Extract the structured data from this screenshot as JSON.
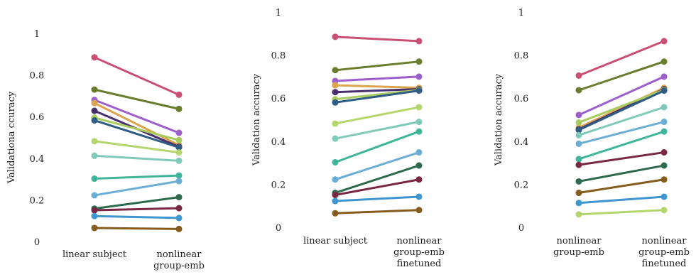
{
  "chart_data": [
    {
      "type": "line",
      "ylabel": "Validationa ccuracy",
      "ylim": [
        0,
        1
      ],
      "yticks": [
        "0",
        "0.2",
        "0.4",
        "0.6",
        "0.8",
        "1"
      ],
      "grid": false,
      "categories": [
        [
          "linear subject"
        ],
        [
          "nonlinear",
          "group-emb"
        ]
      ],
      "series": [
        {
          "values": [
            0.885,
            0.705
          ],
          "color": "#c94f73"
        },
        {
          "values": [
            0.73,
            0.637
          ],
          "color": "#6a7d2d"
        },
        {
          "values": [
            0.68,
            0.522
          ],
          "color": "#9c5fcc"
        },
        {
          "values": [
            0.665,
            0.463
          ],
          "color": "#dca44d"
        },
        {
          "values": [
            0.628,
            0.455
          ],
          "color": "#4a2f6e"
        },
        {
          "values": [
            0.595,
            0.487
          ],
          "color": "#a9cc5e"
        },
        {
          "values": [
            0.582,
            0.452
          ],
          "color": "#2f5d86"
        },
        {
          "values": [
            0.482,
            0.428
          ],
          "color": "#b5d66d"
        },
        {
          "values": [
            0.412,
            0.388
          ],
          "color": "#7fcab8"
        },
        {
          "values": [
            0.302,
            0.317
          ],
          "color": "#3fb59a"
        },
        {
          "values": [
            0.222,
            0.29
          ],
          "color": "#6aaed6"
        },
        {
          "values": [
            0.158,
            0.213
          ],
          "color": "#2e6b4e"
        },
        {
          "values": [
            0.15,
            0.16
          ],
          "color": "#7a2744"
        },
        {
          "values": [
            0.122,
            0.113
          ],
          "color": "#3f95cf"
        },
        {
          "values": [
            0.065,
            0.06
          ],
          "color": "#865c1e"
        }
      ]
    },
    {
      "type": "line",
      "ylabel": "Validation accuracy",
      "ylim": [
        0,
        1
      ],
      "yticks": [
        "0",
        "0.2",
        "0.4",
        "0.6",
        "0.8",
        "1"
      ],
      "grid": false,
      "categories": [
        [
          "linear subject"
        ],
        [
          "nonlinear",
          "group-emb",
          "finetuned"
        ]
      ],
      "series": [
        {
          "values": [
            0.885,
            0.865
          ],
          "color": "#c94f73"
        },
        {
          "values": [
            0.73,
            0.77
          ],
          "color": "#6a7d2d"
        },
        {
          "values": [
            0.68,
            0.7
          ],
          "color": "#9c5fcc"
        },
        {
          "values": [
            0.66,
            0.648
          ],
          "color": "#dca44d"
        },
        {
          "values": [
            0.628,
            0.642
          ],
          "color": "#4a2f6e"
        },
        {
          "values": [
            0.595,
            0.638
          ],
          "color": "#a9cc5e"
        },
        {
          "values": [
            0.58,
            0.635
          ],
          "color": "#2f5d86"
        },
        {
          "values": [
            0.482,
            0.558
          ],
          "color": "#b5d66d"
        },
        {
          "values": [
            0.412,
            0.49
          ],
          "color": "#7fcab8"
        },
        {
          "values": [
            0.302,
            0.445
          ],
          "color": "#3fb59a"
        },
        {
          "values": [
            0.222,
            0.348
          ],
          "color": "#6aaed6"
        },
        {
          "values": [
            0.16,
            0.287
          ],
          "color": "#2e6b4e"
        },
        {
          "values": [
            0.15,
            0.222
          ],
          "color": "#7a2744"
        },
        {
          "values": [
            0.122,
            0.142
          ],
          "color": "#3f95cf"
        },
        {
          "values": [
            0.065,
            0.08
          ],
          "color": "#865c1e"
        }
      ]
    },
    {
      "type": "line",
      "ylabel": "Validation accuracy",
      "ylim": [
        0,
        1
      ],
      "yticks": [
        "0",
        "0.2",
        "0.4",
        "0.6",
        "0.8",
        "1"
      ],
      "grid": false,
      "categories": [
        [
          "nonlinear",
          "group-emb"
        ],
        [
          "nonlinear",
          "group-emb",
          "finetuned"
        ]
      ],
      "series": [
        {
          "values": [
            0.705,
            0.865
          ],
          "color": "#c94f73"
        },
        {
          "values": [
            0.637,
            0.77
          ],
          "color": "#6a7d2d"
        },
        {
          "values": [
            0.522,
            0.7
          ],
          "color": "#9c5fcc"
        },
        {
          "values": [
            0.463,
            0.648
          ],
          "color": "#dca44d"
        },
        {
          "values": [
            0.455,
            0.642
          ],
          "color": "#4a2f6e"
        },
        {
          "values": [
            0.487,
            0.638
          ],
          "color": "#a9cc5e"
        },
        {
          "values": [
            0.452,
            0.635
          ],
          "color": "#2f5d86"
        },
        {
          "values": [
            0.428,
            0.558
          ],
          "color": "#7fcab8"
        },
        {
          "values": [
            0.388,
            0.49
          ],
          "color": "#6aaed6"
        },
        {
          "values": [
            0.317,
            0.445
          ],
          "color": "#3fb59a"
        },
        {
          "values": [
            0.29,
            0.348
          ],
          "color": "#7a2744"
        },
        {
          "values": [
            0.213,
            0.287
          ],
          "color": "#2e6b4e"
        },
        {
          "values": [
            0.16,
            0.222
          ],
          "color": "#865c1e"
        },
        {
          "values": [
            0.113,
            0.142
          ],
          "color": "#3f95cf"
        },
        {
          "values": [
            0.06,
            0.08
          ],
          "color": "#b5d66d"
        }
      ]
    }
  ]
}
